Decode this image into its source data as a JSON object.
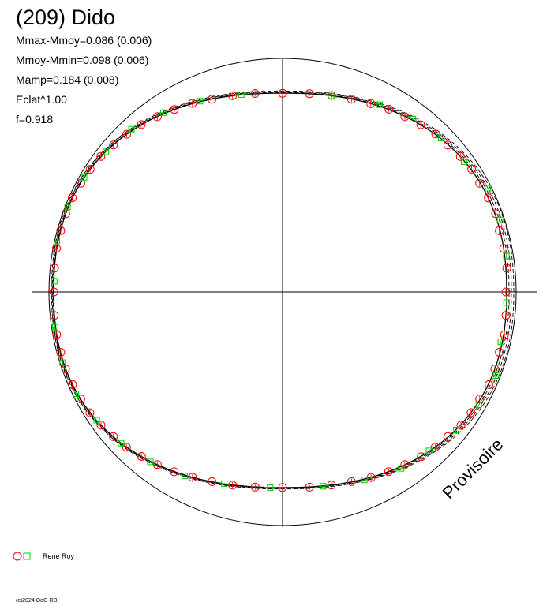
{
  "header": {
    "title": "(209) Dido",
    "stats": [
      "Mmax-Mmoy=0.086 (0.006)",
      "Mmoy-Mmin=0.098 (0.006)",
      "Mamp=0.184 (0.008)",
      "Eclat^1.00",
      "f=0.918"
    ]
  },
  "watermark": "Provisoire",
  "legend": {
    "observer": "Rene Roy"
  },
  "copyright": "(c)2024 OdG-RB",
  "colors": {
    "observer_circle": "#ff0000",
    "observer_square": "#00cc00",
    "curve": "#000000"
  },
  "chart_data": {
    "type": "scatter",
    "coordinate_system": "polar",
    "legend_placement": "bottom-left",
    "grid": false,
    "axes": "crosshair",
    "reference_circle_radius": 1.0,
    "curves": [
      {
        "label": "",
        "style": "solid"
      },
      {
        "label": "",
        "style": "dashed"
      },
      {
        "label": "",
        "style": "dashed"
      },
      {
        "label": "",
        "style": "dashed"
      }
    ],
    "series": [
      {
        "name": "Rene Roy",
        "marker": "circle",
        "radius_unit": 1.0,
        "points_deg": [
          180,
          175,
          170,
          165,
          160,
          155,
          150,
          145,
          140,
          135,
          130,
          125,
          120,
          115,
          110,
          105,
          100,
          95,
          90,
          85,
          80,
          75,
          70,
          65,
          60,
          55,
          50,
          45,
          40,
          35,
          30,
          25,
          20,
          15,
          10,
          5,
          0,
          -5,
          -10,
          -15,
          -20,
          -25,
          -30,
          -35,
          -40,
          -45,
          -50,
          -55,
          -60,
          -65,
          -70,
          -75,
          -80,
          -85,
          -90,
          -95,
          -100,
          -105,
          -110,
          -115,
          -120,
          -125,
          -130,
          -135,
          -140,
          -145,
          -150,
          -155,
          -160,
          -165,
          -170,
          -175
        ]
      },
      {
        "name": "Rene Roy",
        "marker": "square",
        "points_deg": [
          178,
          168,
          158,
          148,
          138,
          128,
          118,
          108,
          98,
          80,
          68,
          58,
          48,
          38,
          28,
          18,
          8,
          -2,
          -12,
          -22,
          -32,
          -42,
          -52,
          -62,
          -72,
          -82,
          -92,
          -102,
          -112,
          -122,
          -132,
          -142,
          -152,
          -162,
          -172
        ]
      }
    ]
  }
}
